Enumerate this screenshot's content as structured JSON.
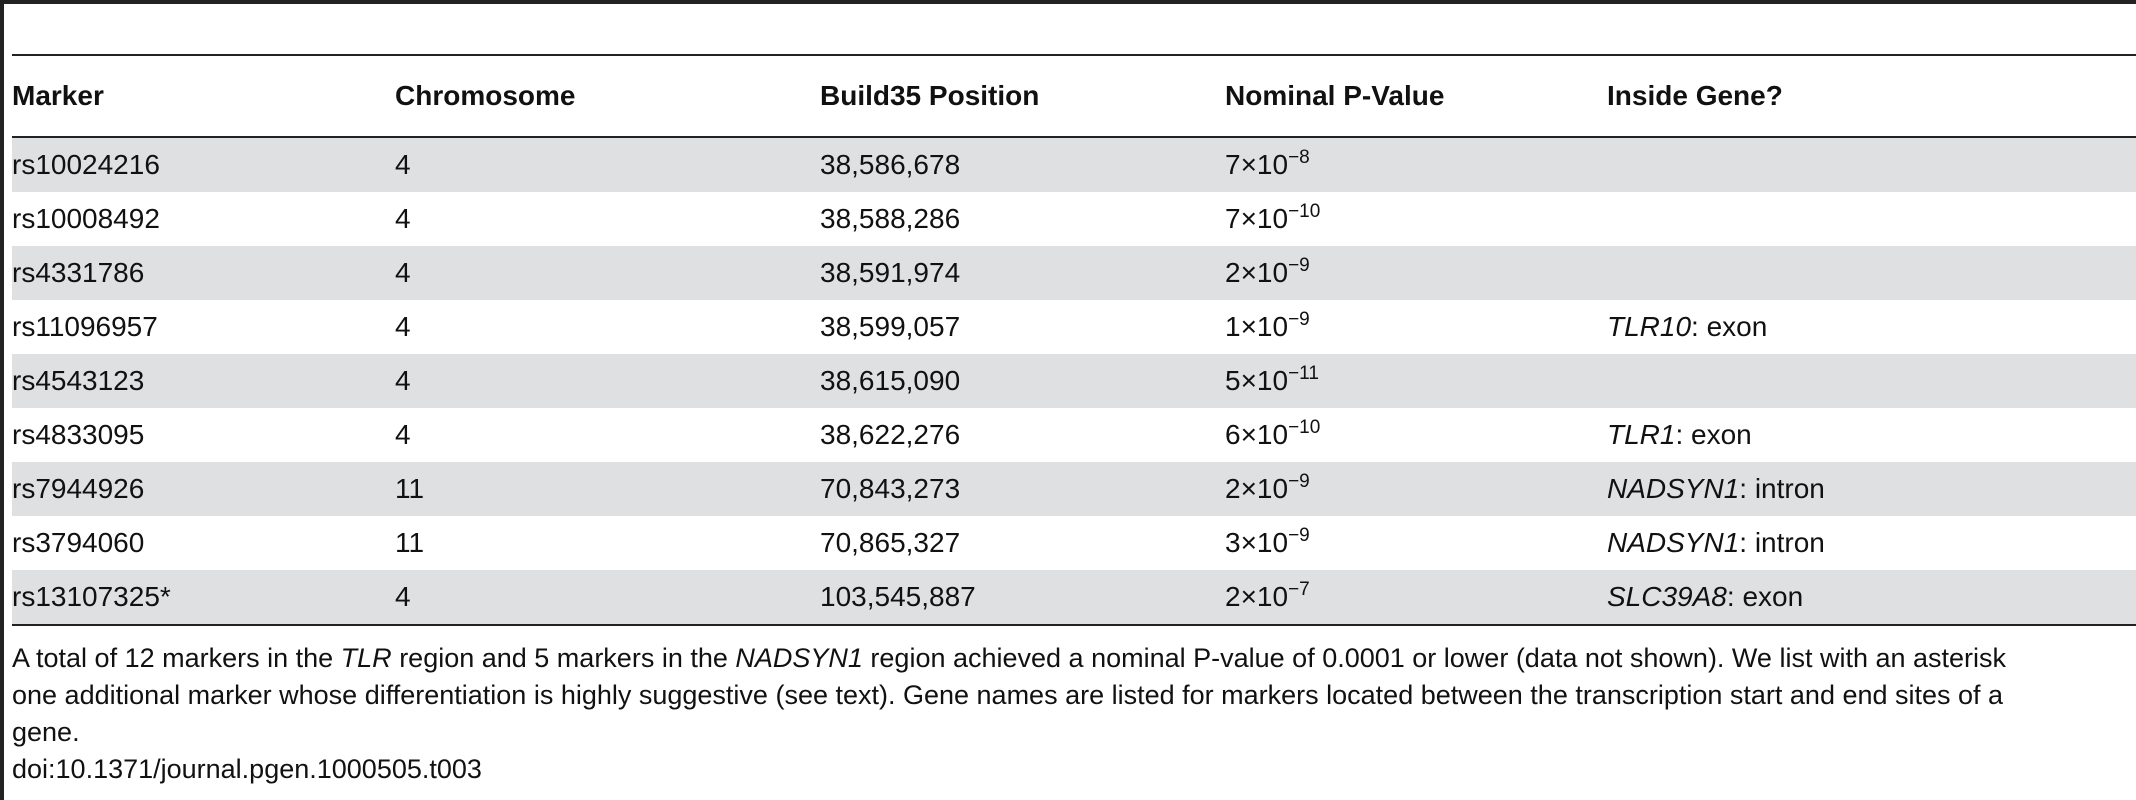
{
  "table": {
    "headers": [
      "Marker",
      "Chromosome",
      "Build35 Position",
      "Nominal P-Value",
      "Inside Gene?"
    ],
    "rows": [
      {
        "marker": "rs10024216",
        "chromosome": "4",
        "position": "38,586,678",
        "p_mantissa": "7",
        "p_exponent": "−8",
        "gene_name": "",
        "gene_region": ""
      },
      {
        "marker": "rs10008492",
        "chromosome": "4",
        "position": "38,588,286",
        "p_mantissa": "7",
        "p_exponent": "−10",
        "gene_name": "",
        "gene_region": ""
      },
      {
        "marker": "rs4331786",
        "chromosome": "4",
        "position": "38,591,974",
        "p_mantissa": "2",
        "p_exponent": "−9",
        "gene_name": "",
        "gene_region": ""
      },
      {
        "marker": "rs11096957",
        "chromosome": "4",
        "position": "38,599,057",
        "p_mantissa": "1",
        "p_exponent": "−9",
        "gene_name": "TLR10",
        "gene_region": "exon"
      },
      {
        "marker": "rs4543123",
        "chromosome": "4",
        "position": "38,615,090",
        "p_mantissa": "5",
        "p_exponent": "−11",
        "gene_name": "",
        "gene_region": ""
      },
      {
        "marker": "rs4833095",
        "chromosome": "4",
        "position": "38,622,276",
        "p_mantissa": "6",
        "p_exponent": "−10",
        "gene_name": "TLR1",
        "gene_region": "exon"
      },
      {
        "marker": "rs7944926",
        "chromosome": "11",
        "position": "70,843,273",
        "p_mantissa": "2",
        "p_exponent": "−9",
        "gene_name": "NADSYN1",
        "gene_region": "intron"
      },
      {
        "marker": "rs3794060",
        "chromosome": "11",
        "position": "70,865,327",
        "p_mantissa": "3",
        "p_exponent": "−9",
        "gene_name": "NADSYN1",
        "gene_region": "intron"
      },
      {
        "marker": "rs13107325*",
        "chromosome": "4",
        "position": "103,545,887",
        "p_mantissa": "2",
        "p_exponent": "−7",
        "gene_name": "SLC39A8",
        "gene_region": "exon"
      }
    ]
  },
  "footnote": {
    "line1_a": "A total of 12 markers in the ",
    "line1_b": "TLR",
    "line1_c": " region and 5 markers in the ",
    "line1_d": "NADSYN1",
    "line1_e": " region achieved a nominal P-value of 0.0001 or lower (data not shown). We list with an asterisk",
    "line2": "one additional marker whose differentiation is highly suggestive (see text). Gene names are listed for markers located between the transcription start and end sites of a",
    "line3": "gene.",
    "doi": "doi:10.1371/journal.pgen.1000505.t003"
  }
}
